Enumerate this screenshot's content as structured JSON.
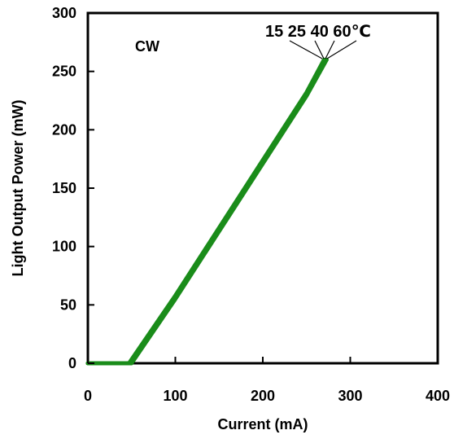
{
  "chart_data": {
    "type": "line",
    "xlabel": "Current (mA)",
    "ylabel": "Light Output Power (mW)",
    "xlim": [
      0,
      400
    ],
    "ylim": [
      0,
      300
    ],
    "x_ticks": [
      "0",
      "100",
      "200",
      "300",
      "400"
    ],
    "y_ticks": [
      "0",
      "50",
      "100",
      "150",
      "200",
      "250",
      "300"
    ],
    "x_tick_values": [
      0,
      100,
      200,
      300,
      400
    ],
    "y_tick_values": [
      0,
      50,
      100,
      150,
      200,
      250,
      300
    ],
    "grid": false,
    "legend": "none",
    "annotations": {
      "mode_label": "CW",
      "temperature_label": "15 25 40 60℃"
    },
    "series_color": "#1a8c1a",
    "series": [
      {
        "x": [
          0,
          25,
          42,
          47,
          100,
          150,
          200,
          250,
          270
        ],
        "values": [
          0,
          0,
          0,
          0,
          58,
          116,
          174,
          232,
          260
        ]
      },
      {
        "x": [
          0,
          25,
          43,
          48,
          100,
          150,
          200,
          250,
          271
        ],
        "values": [
          0,
          0,
          0,
          0,
          57,
          115,
          173,
          231,
          260
        ]
      },
      {
        "x": [
          0,
          25,
          44,
          49,
          100,
          150,
          200,
          250,
          272
        ],
        "values": [
          0,
          0,
          0,
          0,
          56,
          114,
          172,
          230,
          260
        ]
      },
      {
        "x": [
          0,
          25,
          45,
          50,
          100,
          150,
          200,
          250,
          273
        ],
        "values": [
          0,
          0,
          0,
          0,
          55,
          113,
          171,
          229,
          260
        ]
      }
    ]
  }
}
